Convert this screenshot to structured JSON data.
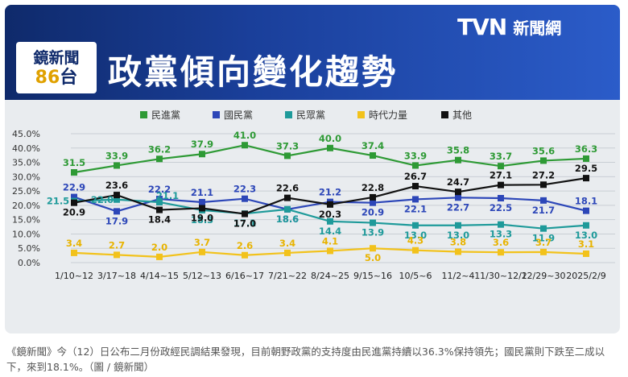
{
  "header": {
    "brand_logo": "TVN",
    "brand_name": "新聞網",
    "show_name": "鏡新聞",
    "show_number": "86",
    "show_suffix": "台",
    "title": "政黨傾向變化趨勢"
  },
  "caption": "《鏡新聞》今（12）日公布二月份政經民調結果發現，目前朝野政黨的支持度由民進黨持續以36.3%保持領先；國民黨則下跌至二成以下，來到18.1%。（圖 / 鏡新聞）",
  "chart_data": {
    "type": "line",
    "categories": [
      "1/10~12",
      "3/17~18",
      "4/14~15",
      "5/12~13",
      "6/16~17",
      "7/21~22",
      "8/24~25",
      "9/15~16",
      "10/5~6",
      "11/2~4",
      "11/30~12/2",
      "12/29~30",
      "2025/2/9"
    ],
    "ylim": [
      0,
      45
    ],
    "yticks": [
      "0.0%",
      "5.0%",
      "10.0%",
      "15.0%",
      "20.0%",
      "25.0%",
      "30.0%",
      "35.0%",
      "40.0%",
      "45.0%"
    ],
    "grid": true,
    "legend_position": "top",
    "series": [
      {
        "name": "民進黨",
        "color": "#2e9a35",
        "labels": [
          "31.5",
          "33.9",
          "36.2",
          "37.9",
          "41.0",
          "37.3",
          "40.0",
          "37.4",
          "33.9",
          "35.8",
          "33.7",
          "35.6",
          "36.3"
        ],
        "values": [
          31.5,
          33.9,
          36.2,
          37.9,
          41.0,
          37.3,
          40.0,
          37.4,
          33.9,
          35.8,
          33.7,
          35.6,
          36.3
        ]
      },
      {
        "name": "國民黨",
        "color": "#2c46b8",
        "labels": [
          "22.9",
          "17.9",
          "22.2",
          "21.1",
          "22.3",
          "18.6",
          "21.2",
          "20.9",
          "22.1",
          "22.7",
          "22.5",
          "21.7",
          "18.1"
        ],
        "values": [
          22.9,
          17.9,
          22.2,
          21.1,
          22.3,
          18.6,
          21.2,
          20.9,
          22.1,
          22.7,
          22.5,
          21.7,
          18.1
        ]
      },
      {
        "name": "民眾黨",
        "color": "#1e9a9a",
        "labels": [
          "21.5",
          "22.0",
          "21.1",
          "18.3",
          "17.1",
          "18.6",
          "14.4",
          "13.9",
          "13.0",
          "13.0",
          "13.3",
          "11.9",
          "13.0"
        ],
        "values": [
          21.5,
          22.0,
          21.1,
          18.3,
          17.1,
          18.6,
          14.4,
          13.9,
          13.0,
          13.0,
          13.3,
          11.9,
          13.0
        ]
      },
      {
        "name": "時代力量",
        "color": "#f2c21b",
        "labels": [
          "3.4",
          "2.7",
          "2.0",
          "3.7",
          "2.6",
          "3.4",
          "4.1",
          "5.0",
          "4.3",
          "3.8",
          "3.6",
          "3.7",
          "3.1"
        ],
        "values": [
          3.4,
          2.7,
          2.0,
          3.7,
          2.6,
          3.4,
          4.1,
          5.0,
          4.3,
          3.8,
          3.6,
          3.7,
          3.1
        ]
      },
      {
        "name": "其他",
        "color": "#111111",
        "labels": [
          "20.9",
          "23.6",
          "18.4",
          "19.0",
          "17.0",
          "22.6",
          "20.3",
          "22.8",
          "26.7",
          "24.7",
          "27.1",
          "27.2",
          "29.5"
        ],
        "values": [
          20.9,
          23.6,
          18.4,
          19.0,
          17.0,
          22.6,
          20.3,
          22.8,
          26.7,
          24.7,
          27.1,
          27.2,
          29.5
        ]
      }
    ]
  }
}
